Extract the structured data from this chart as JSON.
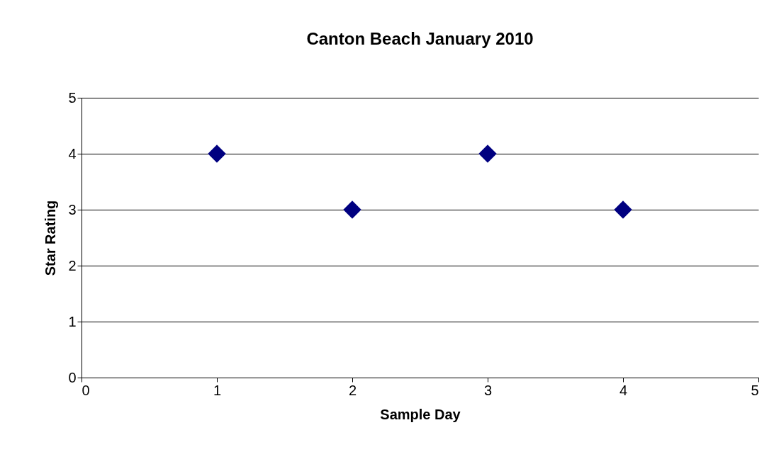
{
  "chart_data": {
    "type": "scatter",
    "title": "Canton Beach January 2010",
    "xlabel": "Sample Day",
    "ylabel": "Star Rating",
    "x": [
      1,
      2,
      3,
      4
    ],
    "series": [
      {
        "color": "#000080",
        "values": [
          4,
          3,
          4,
          3
        ]
      }
    ],
    "xlim": [
      0,
      5
    ],
    "ylim": [
      0,
      5
    ],
    "xticks": [
      0,
      1,
      2,
      3,
      4,
      5
    ],
    "yticks": [
      0,
      1,
      2,
      3,
      4,
      5
    ],
    "grid": "y",
    "marker": "diamond"
  }
}
